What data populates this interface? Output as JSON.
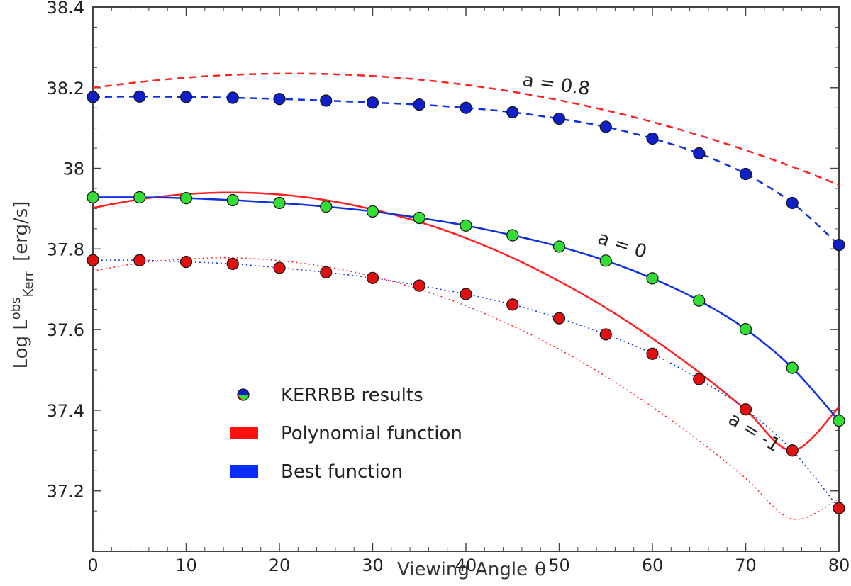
{
  "chart_data": {
    "type": "line",
    "xlabel": "Viewing Angle",
    "xlabel_symbol": "θ",
    "ylabel": {
      "prefix": "Log L",
      "superscript": "obs",
      "subscript": "Kerr",
      "suffix": "[erg/s]"
    },
    "xlim": [
      0,
      80
    ],
    "ylim": [
      37.05,
      38.4
    ],
    "xticks": [
      0,
      10,
      20,
      30,
      40,
      50,
      60,
      70,
      80
    ],
    "xtick_labels": [
      "0",
      "10",
      "20",
      "30",
      "40",
      "50",
      "60",
      "70",
      "80"
    ],
    "yticks": [
      37.2,
      37.4,
      37.6,
      37.8,
      38.0,
      38.2,
      38.4
    ],
    "ytick_labels": [
      "37.2",
      "37.4",
      "37.6",
      "37.8",
      "38",
      "38.2",
      "38.4"
    ],
    "x": [
      0,
      5,
      10,
      15,
      20,
      25,
      30,
      35,
      40,
      45,
      50,
      55,
      60,
      65,
      70,
      75,
      80
    ],
    "series": [
      {
        "name": "a = 0.8",
        "spin": "0.8",
        "kerrbb_results": [
          38.177,
          38.178,
          38.177,
          38.175,
          38.172,
          38.168,
          38.163,
          38.158,
          38.15,
          38.139,
          38.123,
          38.103,
          38.074,
          38.037,
          37.986,
          37.914,
          37.81
        ],
        "polynomial_function": [
          38.2,
          38.214,
          38.225,
          38.232,
          38.235,
          38.234,
          38.229,
          38.22,
          38.207,
          38.19,
          38.169,
          38.144,
          38.115,
          38.082,
          38.045,
          38.004,
          37.959
        ],
        "best_function": [
          38.177,
          38.178,
          38.177,
          38.175,
          38.172,
          38.168,
          38.163,
          38.158,
          38.15,
          38.139,
          38.123,
          38.103,
          38.074,
          38.037,
          37.986,
          37.914,
          37.81
        ],
        "marker_color": "#1020c8",
        "line_style": "dashed"
      },
      {
        "name": "a = 0",
        "spin": "0",
        "kerrbb_results": [
          37.928,
          37.928,
          37.926,
          37.921,
          37.914,
          37.905,
          37.893,
          37.877,
          37.858,
          37.834,
          37.806,
          37.771,
          37.727,
          37.672,
          37.601,
          37.505,
          37.374
        ],
        "polynomial_function": [
          37.902,
          37.923,
          37.936,
          37.94,
          37.935,
          37.921,
          37.898,
          37.867,
          37.827,
          37.778,
          37.72,
          37.654,
          37.578,
          37.494,
          37.401,
          37.3,
          37.408
        ],
        "best_function": [
          37.928,
          37.928,
          37.926,
          37.921,
          37.914,
          37.905,
          37.893,
          37.877,
          37.858,
          37.834,
          37.806,
          37.771,
          37.727,
          37.672,
          37.601,
          37.505,
          37.374
        ],
        "marker_color": "#33dd33",
        "line_style": "solid"
      },
      {
        "name": "a = -1",
        "spin": "-1",
        "kerrbb_results": [
          37.772,
          37.772,
          37.768,
          37.763,
          37.753,
          37.742,
          37.728,
          37.709,
          37.688,
          37.662,
          37.628,
          37.588,
          37.54,
          37.477,
          37.402,
          37.3,
          37.157
        ],
        "polynomial_function": [
          37.745,
          37.765,
          37.775,
          37.778,
          37.771,
          37.756,
          37.732,
          37.7,
          37.659,
          37.609,
          37.551,
          37.484,
          37.408,
          37.324,
          37.231,
          37.13,
          37.18
        ],
        "best_function": [
          37.772,
          37.772,
          37.768,
          37.763,
          37.753,
          37.742,
          37.728,
          37.709,
          37.688,
          37.662,
          37.628,
          37.588,
          37.54,
          37.477,
          37.402,
          37.3,
          37.157
        ],
        "marker_color": "#e01010",
        "line_style": "dotted"
      }
    ],
    "annotations": [
      {
        "text": "a = 0.8",
        "x": 46,
        "y": 38.205,
        "rotation": 8
      },
      {
        "text": "a = 0",
        "x": 54,
        "y": 37.815,
        "rotation": 18
      },
      {
        "text": "a = -1",
        "x": 68,
        "y": 37.37,
        "rotation": 32
      }
    ],
    "legend": {
      "position": "bottom-left",
      "entries": [
        {
          "label": "KERRBB results",
          "kind": "marker"
        },
        {
          "label": "Polynomial function",
          "kind": "patch",
          "color": "#ff1010"
        },
        {
          "label": "Best function",
          "kind": "patch",
          "color": "#0a2cff"
        }
      ]
    },
    "colors": {
      "polynomial": "#ff2020",
      "best": "#1030e0",
      "marker_edge": "#111111",
      "axis": "#444444"
    }
  }
}
